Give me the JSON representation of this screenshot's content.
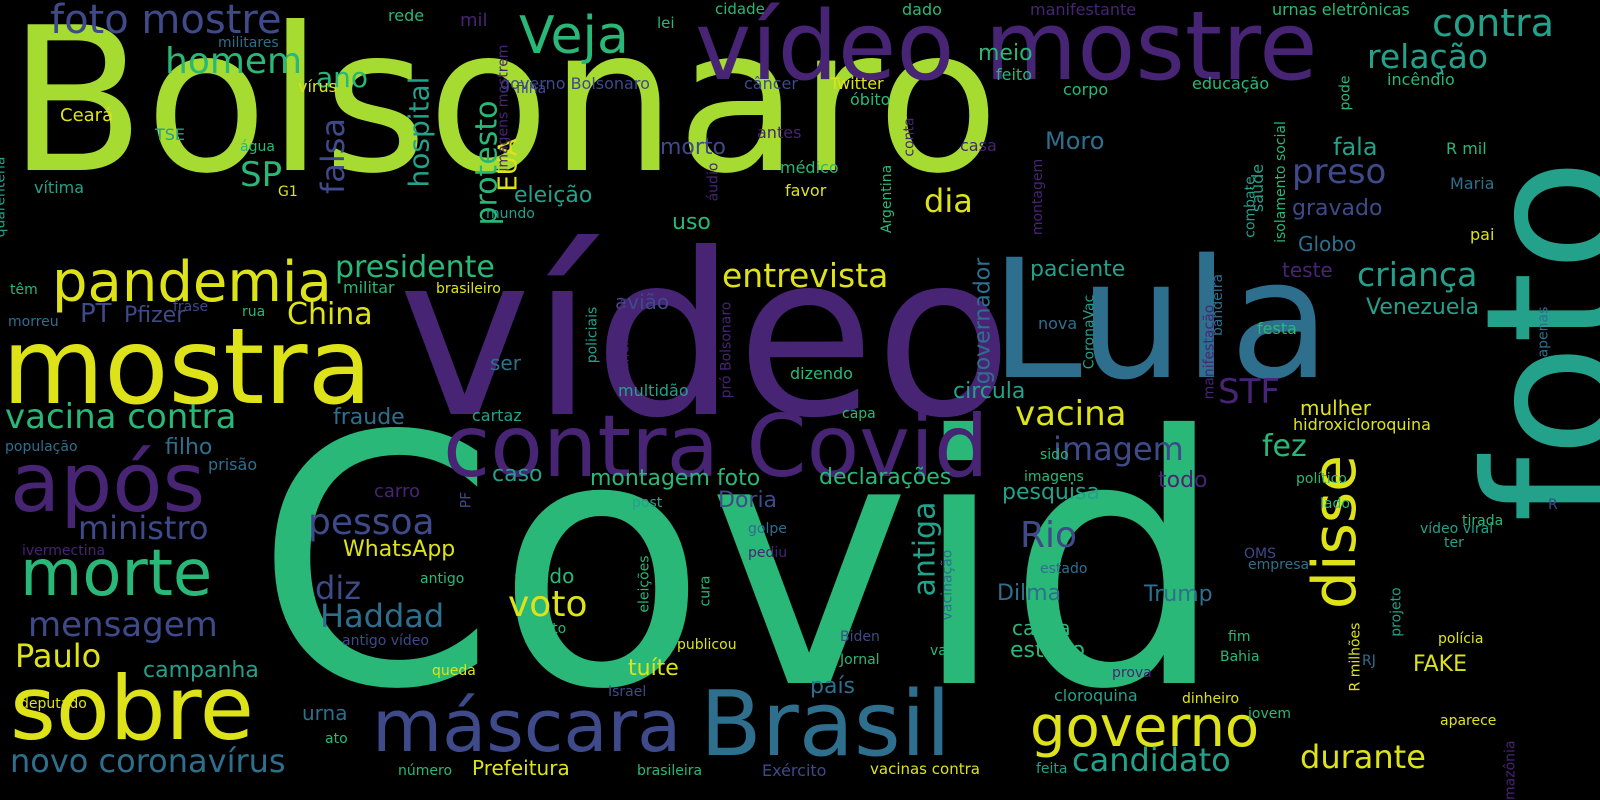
{
  "palette": {
    "background": "#000000",
    "lime": "#a6db31",
    "yellow": "#dde318",
    "green": "#29b878",
    "teal": "#24a18a",
    "blue": "#2e6f8e",
    "indigo": "#3e4a89",
    "purple": "#482475"
  },
  "words": [
    {
      "text": "Bolsonaro"
    },
    {
      "text": "Covid"
    },
    {
      "text": "vídeo"
    },
    {
      "text": "foto"
    },
    {
      "text": "Lula"
    },
    {
      "text": "mostra"
    },
    {
      "text": "vídeo mostre"
    },
    {
      "text": "contra Covid"
    },
    {
      "text": "após"
    },
    {
      "text": "sobre"
    },
    {
      "text": "Brasil"
    },
    {
      "text": "máscara"
    },
    {
      "text": "coronavírus"
    },
    {
      "text": "disse"
    },
    {
      "text": "morte"
    },
    {
      "text": "pandemia"
    },
    {
      "text": "governo"
    },
    {
      "text": "Veja"
    },
    {
      "text": "foto mostre"
    },
    {
      "text": "contra"
    },
    {
      "text": "relação"
    },
    {
      "text": "homem"
    },
    {
      "text": "ano"
    },
    {
      "text": "vacina contra"
    },
    {
      "text": "entrevista"
    },
    {
      "text": "criança"
    },
    {
      "text": "vacina"
    },
    {
      "text": "pessoa"
    },
    {
      "text": "Rio"
    },
    {
      "text": "voto"
    },
    {
      "text": "Haddad"
    },
    {
      "text": "mensagem"
    },
    {
      "text": "ministro"
    },
    {
      "text": "Paulo"
    },
    {
      "text": "novo coronavírus"
    },
    {
      "text": "candidato"
    },
    {
      "text": "durante"
    },
    {
      "text": "presidente"
    },
    {
      "text": "preso"
    },
    {
      "text": "imagem"
    },
    {
      "text": "STF"
    },
    {
      "text": "fez"
    },
    {
      "text": "antiga"
    },
    {
      "text": "diz"
    },
    {
      "text": "China"
    },
    {
      "text": "dia"
    },
    {
      "text": "falsa"
    },
    {
      "text": "SP"
    },
    {
      "text": "PT"
    },
    {
      "text": "Pfizer"
    },
    {
      "text": "hospital"
    },
    {
      "text": "protesto"
    },
    {
      "text": "EUA"
    },
    {
      "text": "eleição"
    },
    {
      "text": "Moro"
    },
    {
      "text": "morto"
    },
    {
      "text": "fala"
    },
    {
      "text": "meio"
    },
    {
      "text": "gravado"
    },
    {
      "text": "Globo"
    },
    {
      "text": "teste"
    },
    {
      "text": "Venezuela"
    },
    {
      "text": "paciente"
    },
    {
      "text": "governador"
    },
    {
      "text": "circula"
    },
    {
      "text": "fraude"
    },
    {
      "text": "filho"
    },
    {
      "text": "mulher"
    },
    {
      "text": "hidroxicloroquina"
    },
    {
      "text": "declarações"
    },
    {
      "text": "montagem foto"
    },
    {
      "text": "pesquisa"
    },
    {
      "text": "todo"
    },
    {
      "text": "caso"
    },
    {
      "text": "Doria"
    },
    {
      "text": "WhatsApp"
    },
    {
      "text": "sendo"
    },
    {
      "text": "Trump"
    },
    {
      "text": "Dilma"
    },
    {
      "text": "causa"
    },
    {
      "text": "estudo"
    },
    {
      "text": "campanha"
    },
    {
      "text": "tuíte"
    },
    {
      "text": "país"
    },
    {
      "text": "urna"
    },
    {
      "text": "Prefeitura"
    },
    {
      "text": "FAKE"
    },
    {
      "text": "carro"
    },
    {
      "text": "saúde"
    },
    {
      "text": "uso"
    },
    {
      "text": "avião"
    },
    {
      "text": "ser"
    },
    {
      "text": "militar"
    },
    {
      "text": "brasileiro"
    },
    {
      "text": "frase"
    },
    {
      "text": "rua"
    },
    {
      "text": "morreu"
    },
    {
      "text": "têm"
    },
    {
      "text": "população"
    },
    {
      "text": "prisão"
    },
    {
      "text": "ivermectina"
    },
    {
      "text": "deputado"
    },
    {
      "text": "queda"
    },
    {
      "text": "ato"
    },
    {
      "text": "número"
    },
    {
      "text": "brasileira"
    },
    {
      "text": "Exército"
    },
    {
      "text": "vacinas contra"
    },
    {
      "text": "feita"
    },
    {
      "text": "Amazônia"
    },
    {
      "text": "mil"
    },
    {
      "text": "rede"
    },
    {
      "text": "lei"
    },
    {
      "text": "cidade"
    },
    {
      "text": "dado"
    },
    {
      "text": "manifestante"
    },
    {
      "text": "urnas eletrônicas"
    },
    {
      "text": "militares"
    },
    {
      "text": "vírus"
    },
    {
      "text": "Ceará"
    },
    {
      "text": "TSE"
    },
    {
      "text": "água"
    },
    {
      "text": "vítima"
    },
    {
      "text": "G1"
    },
    {
      "text": "quarentena"
    },
    {
      "text": "governo Bolsonaro"
    },
    {
      "text": "imagens mostrem"
    },
    {
      "text": "filha"
    },
    {
      "text": "câncer"
    },
    {
      "text": "Twitter"
    },
    {
      "text": "óbito"
    },
    {
      "text": "antes"
    },
    {
      "text": "médico"
    },
    {
      "text": "favor"
    },
    {
      "text": "áudio"
    },
    {
      "text": "mundo"
    },
    {
      "text": "conta"
    },
    {
      "text": "Argentina"
    },
    {
      "text": "casa"
    },
    {
      "text": "montagem"
    },
    {
      "text": "feito"
    },
    {
      "text": "corpo"
    },
    {
      "text": "educação"
    },
    {
      "text": "pode"
    },
    {
      "text": "incêndio"
    },
    {
      "text": "R mil"
    },
    {
      "text": "Maria"
    },
    {
      "text": "combate"
    },
    {
      "text": "isolamento social"
    },
    {
      "text": "pai"
    },
    {
      "text": "bandeira"
    },
    {
      "text": "manifestação"
    },
    {
      "text": "festa"
    },
    {
      "text": "apenas"
    },
    {
      "text": "nova"
    },
    {
      "text": "CoronaVac"
    },
    {
      "text": "policiais"
    },
    {
      "text": "funcionário"
    },
    {
      "text": "pró Bolsonaro"
    },
    {
      "text": "dizendo"
    },
    {
      "text": "multidão"
    },
    {
      "text": "capa"
    },
    {
      "text": "cartaz"
    },
    {
      "text": "sido"
    },
    {
      "text": "imagens"
    },
    {
      "text": "post"
    },
    {
      "text": "político"
    },
    {
      "text": "lado"
    },
    {
      "text": "R"
    },
    {
      "text": "tirada"
    },
    {
      "text": "vídeo viral"
    },
    {
      "text": "ter"
    },
    {
      "text": "golpe"
    },
    {
      "text": "pediu"
    },
    {
      "text": "vacinação"
    },
    {
      "text": "OMS"
    },
    {
      "text": "empresa"
    },
    {
      "text": "estado"
    },
    {
      "text": "antigo"
    },
    {
      "text": "antigo vídeo"
    },
    {
      "text": "texto"
    },
    {
      "text": "eleições"
    },
    {
      "text": "cura"
    },
    {
      "text": "publicou"
    },
    {
      "text": "Biden"
    },
    {
      "text": "Jornal"
    },
    {
      "text": "vai"
    },
    {
      "text": "fim"
    },
    {
      "text": "Bahia"
    },
    {
      "text": "projeto"
    },
    {
      "text": "R milhões"
    },
    {
      "text": "RJ"
    },
    {
      "text": "polícia"
    },
    {
      "text": "prova"
    },
    {
      "text": "cloroquina"
    },
    {
      "text": "dinheiro"
    },
    {
      "text": "jovem"
    },
    {
      "text": "aparece"
    },
    {
      "text": "Israel"
    },
    {
      "text": "PF"
    }
  ]
}
